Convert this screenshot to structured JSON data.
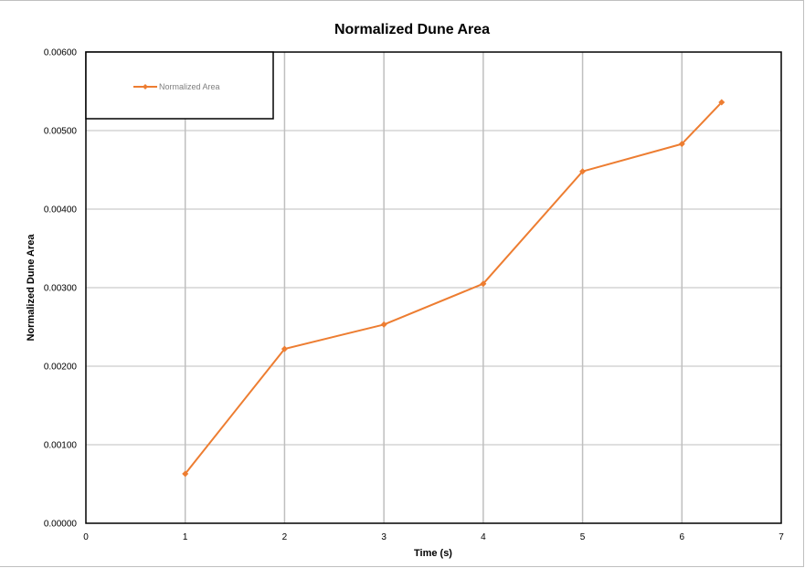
{
  "colors": {
    "series": "#ED7D31",
    "grid": "#BFBFBF",
    "frame": "#000000"
  },
  "chart_data": {
    "type": "scatter",
    "title": "Normalized Dune Area",
    "xlabel": "Time (s)",
    "ylabel": "Normalized Dune Area",
    "xlim": [
      0,
      7
    ],
    "ylim": [
      0,
      0.006
    ],
    "x_ticks": [
      "0",
      "1",
      "2",
      "3",
      "4",
      "5",
      "6",
      "7"
    ],
    "y_ticks": [
      "0.00000",
      "0.00100",
      "0.00200",
      "0.00300",
      "0.00400",
      "0.00500",
      "0.00600"
    ],
    "grid": true,
    "legend_position": "top-left",
    "series": [
      {
        "name": "Normalized Area",
        "marker": "diamond",
        "line": "straight",
        "x": [
          1,
          2,
          3,
          4,
          5,
          6,
          6.4
        ],
        "y": [
          0.00063,
          0.00222,
          0.00253,
          0.00305,
          0.00448,
          0.00483,
          0.00536
        ]
      }
    ]
  }
}
